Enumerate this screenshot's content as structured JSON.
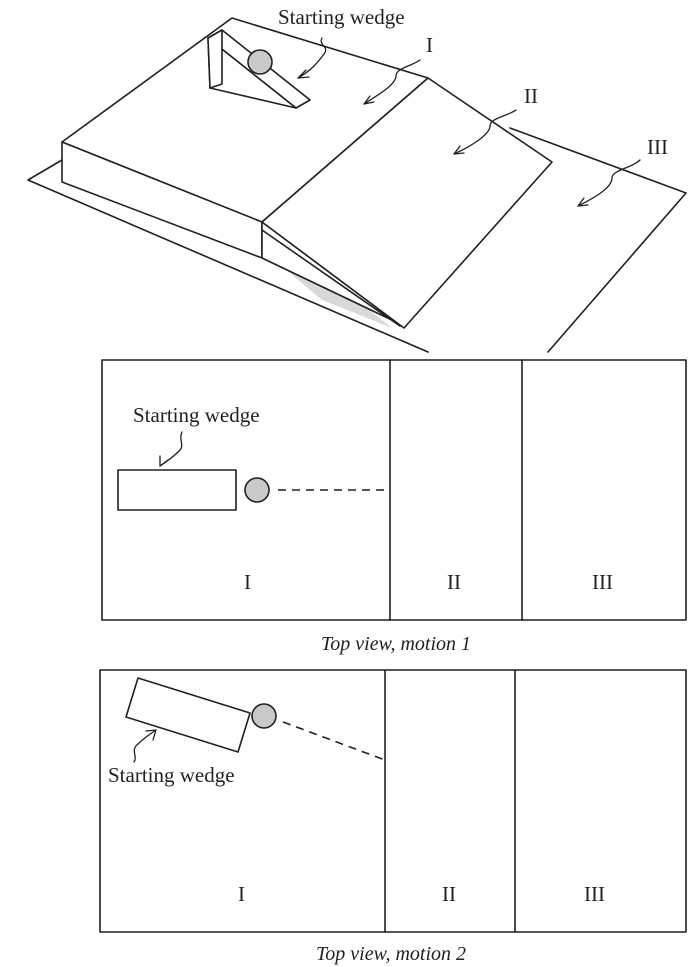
{
  "perspective": {
    "wedge_label": "Starting wedge",
    "region_labels": [
      "I",
      "II",
      "III"
    ]
  },
  "top_view_1": {
    "wedge_label": "Starting wedge",
    "region_labels": [
      "I",
      "II",
      "III"
    ],
    "caption": "Top view, motion 1"
  },
  "top_view_2": {
    "wedge_label": "Starting wedge",
    "region_labels": [
      "I",
      "II",
      "III"
    ],
    "caption": "Top view, motion 2"
  },
  "colors": {
    "ink": "#231f20",
    "ball_fill": "#c9c9c9",
    "shadow": "#d9d9d9"
  }
}
